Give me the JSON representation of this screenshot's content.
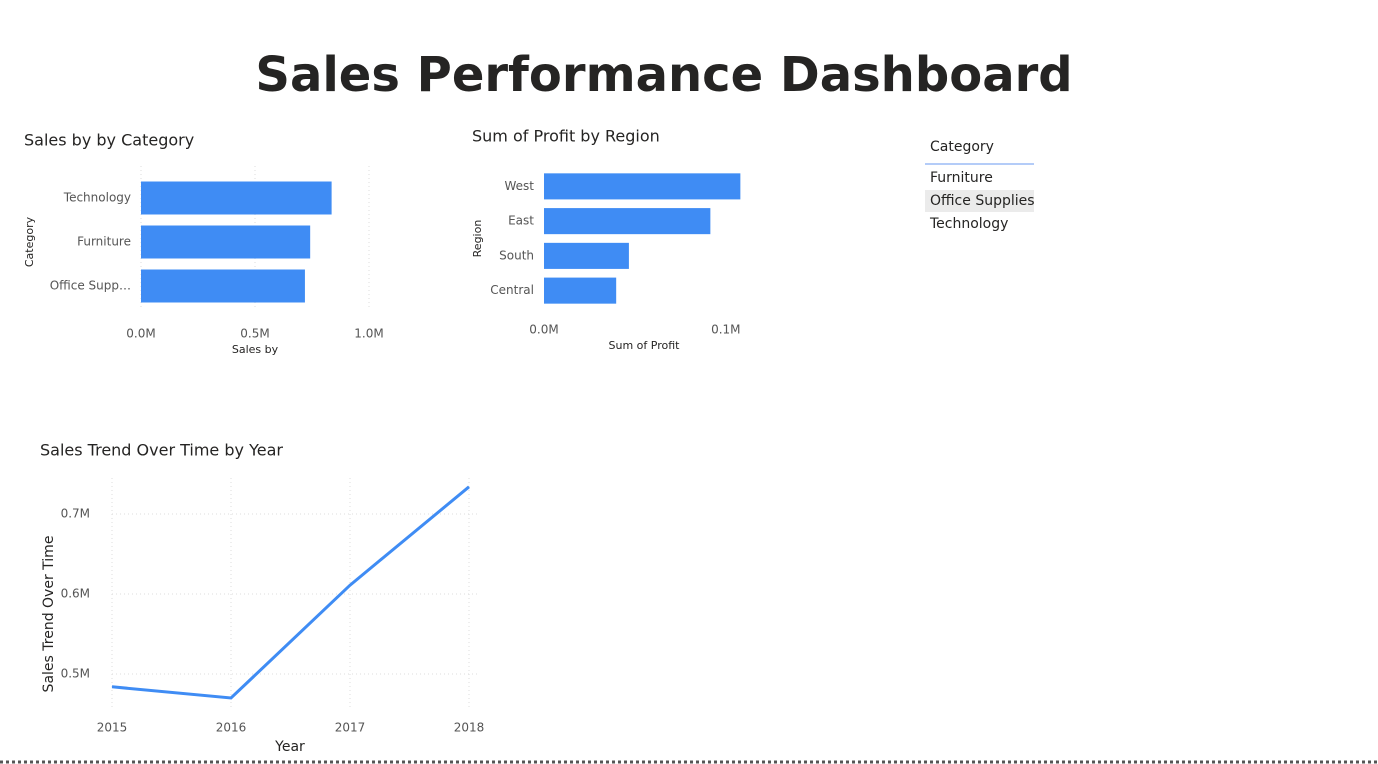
{
  "title": "Sales Performance Dashboard",
  "chart_data": [
    {
      "type": "hbar",
      "title": "Sales by by Category",
      "x_label": "Sales by",
      "y_label": "Category",
      "categories": [
        "Technology",
        "Furniture",
        "Office Supp…"
      ],
      "values": [
        836000,
        742000,
        719000
      ],
      "color": "#3f8cf4",
      "xlim": [
        0,
        1000000
      ],
      "xticks": [
        {
          "value": 0,
          "label": "0.0M"
        },
        {
          "value": 500000,
          "label": "0.5M"
        },
        {
          "value": 1000000,
          "label": "1.0M"
        }
      ],
      "grid": true
    },
    {
      "type": "hbar",
      "title": "Sum of Profit by Region",
      "x_label": "Sum of Profit",
      "y_label": "Region",
      "categories": [
        "West",
        "East",
        "South",
        "Central"
      ],
      "values": [
        108000,
        91500,
        46700,
        39700
      ],
      "color": "#3f8cf4",
      "xlim": [
        0,
        110000
      ],
      "xticks": [
        {
          "value": 0,
          "label": "0.0M"
        },
        {
          "value": 100000,
          "label": "0.1M"
        }
      ],
      "grid": false
    },
    {
      "type": "line",
      "title": "Sales Trend Over Time by Year",
      "x_label": "Year",
      "y_label": "Sales Trend Over Time",
      "x": [
        2015,
        2016,
        2017,
        2018
      ],
      "values": [
        484000,
        470000,
        611000,
        734000
      ],
      "color": "#3f8cf4",
      "xlim": [
        2015,
        2018
      ],
      "xticks": [
        2015,
        2016,
        2017,
        2018
      ],
      "ylim": [
        455000,
        745000
      ],
      "yticks": [
        {
          "value": 500000,
          "label": "0.5M"
        },
        {
          "value": 600000,
          "label": "0.6M"
        },
        {
          "value": 700000,
          "label": "0.7M"
        }
      ],
      "grid": true
    }
  ],
  "slicer": {
    "header": "Category",
    "items": [
      "Furniture",
      "Office Supplies",
      "Technology"
    ],
    "selected": 1
  }
}
